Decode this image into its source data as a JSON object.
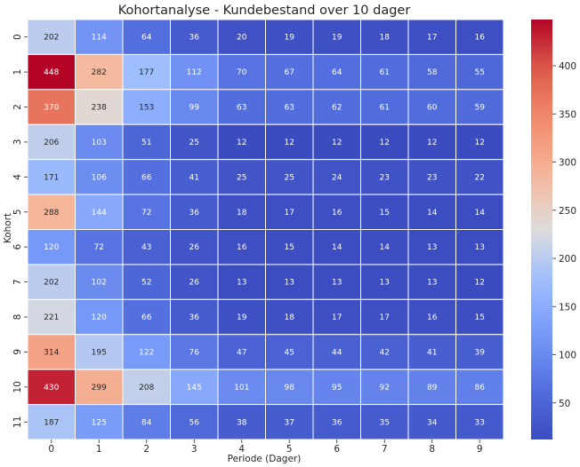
{
  "chart_data": {
    "type": "heatmap",
    "title": "Kohortanalyse - Kundebestand over 10 dager",
    "xlabel": "Periode (Dager)",
    "ylabel": "Kohort",
    "x_ticks": [
      "0",
      "1",
      "2",
      "3",
      "4",
      "5",
      "6",
      "7",
      "8",
      "9"
    ],
    "y_ticks": [
      "0",
      "1",
      "2",
      "3",
      "4",
      "5",
      "6",
      "7",
      "8",
      "9",
      "10",
      "11"
    ],
    "values": [
      [
        202,
        114,
        64,
        36,
        20,
        19,
        19,
        18,
        17,
        16
      ],
      [
        448,
        282,
        177,
        112,
        70,
        67,
        64,
        61,
        58,
        55
      ],
      [
        370,
        238,
        153,
        99,
        63,
        63,
        62,
        61,
        60,
        59
      ],
      [
        206,
        103,
        51,
        25,
        12,
        12,
        12,
        12,
        12,
        12
      ],
      [
        171,
        106,
        66,
        41,
        25,
        25,
        24,
        23,
        23,
        22
      ],
      [
        288,
        144,
        72,
        36,
        18,
        17,
        16,
        15,
        14,
        14
      ],
      [
        120,
        72,
        43,
        26,
        16,
        15,
        14,
        14,
        13,
        13
      ],
      [
        202,
        102,
        52,
        26,
        13,
        13,
        13,
        13,
        13,
        12
      ],
      [
        221,
        120,
        66,
        36,
        19,
        18,
        17,
        17,
        16,
        15
      ],
      [
        314,
        195,
        122,
        76,
        47,
        45,
        44,
        42,
        41,
        39
      ],
      [
        430,
        299,
        208,
        145,
        101,
        98,
        95,
        92,
        89,
        86
      ],
      [
        187,
        125,
        84,
        56,
        38,
        37,
        36,
        35,
        34,
        33
      ]
    ],
    "colorbar": {
      "colormap": "coolwarm",
      "vmin": 12,
      "vmax": 448,
      "ticks": [
        "50",
        "100",
        "150",
        "200",
        "250",
        "300",
        "350",
        "400"
      ]
    }
  }
}
